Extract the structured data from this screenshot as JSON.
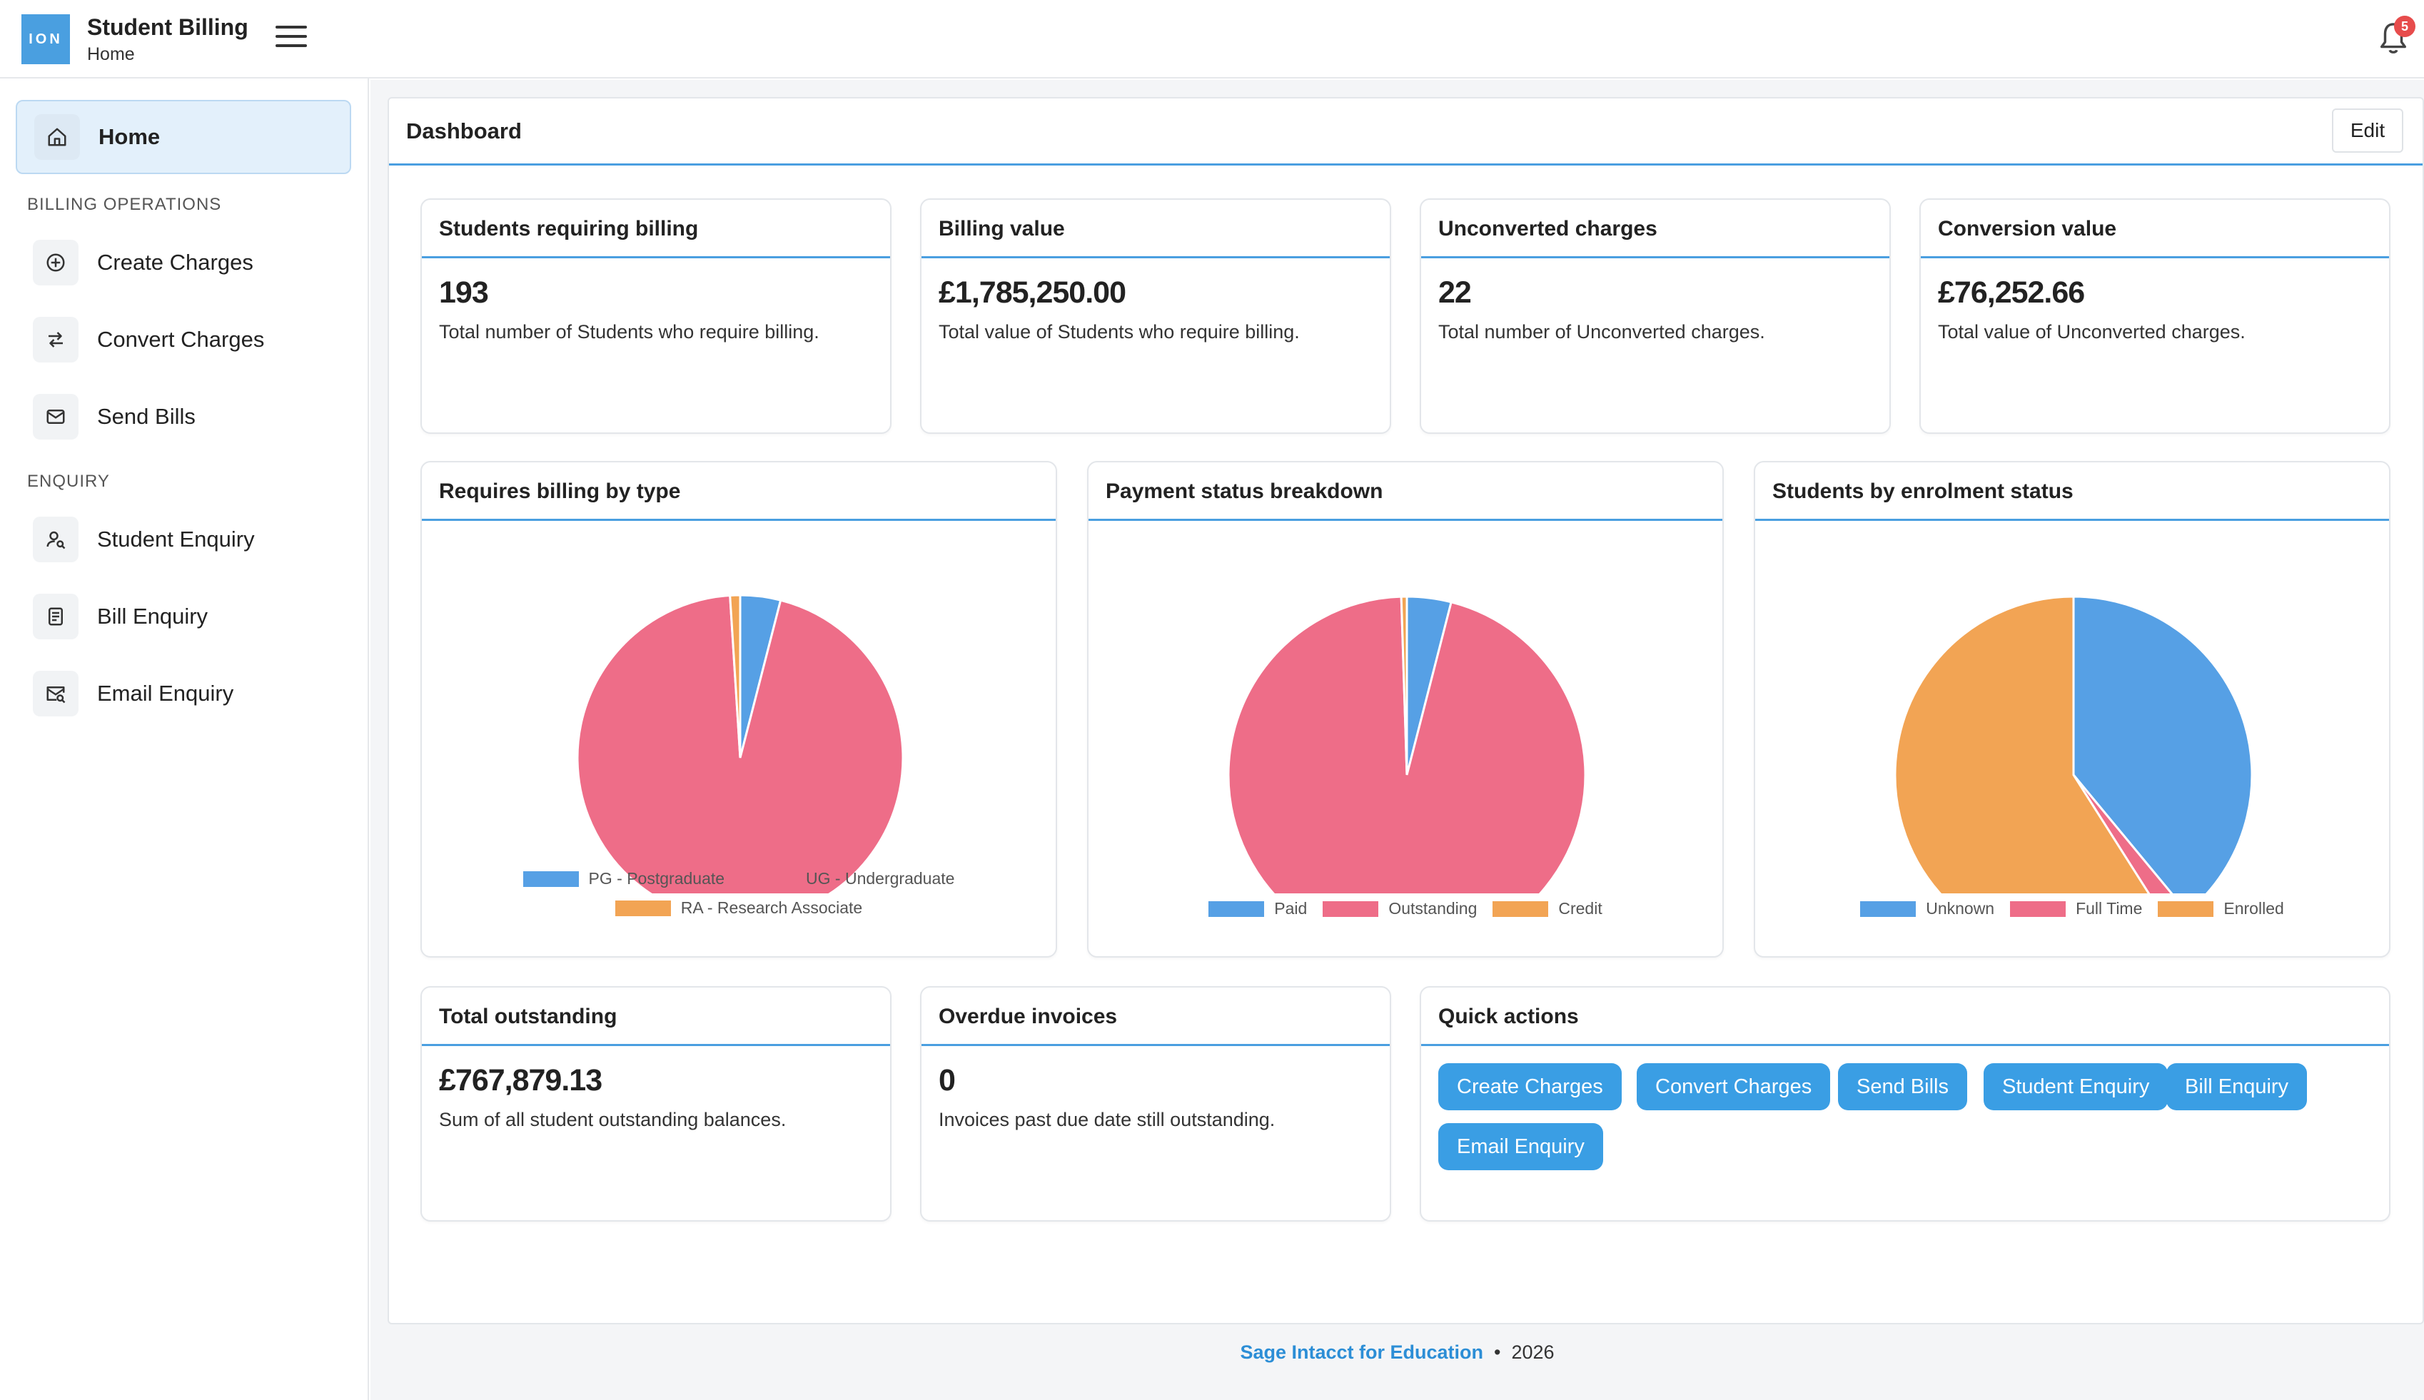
{
  "header": {
    "logo_text": "ION",
    "app_title": "Student Billing",
    "app_subtitle": "Home",
    "notification_count": "5"
  },
  "sidebar": {
    "home_label": "Home",
    "section_billing": "BILLING OPERATIONS",
    "section_enquiry": "ENQUIRY",
    "items": [
      {
        "label": "Create Charges",
        "icon": "plus-circle-icon"
      },
      {
        "label": "Convert Charges",
        "icon": "swap-arrows-icon"
      },
      {
        "label": "Send Bills",
        "icon": "envelope-icon"
      },
      {
        "label": "Student Enquiry",
        "icon": "user-search-icon"
      },
      {
        "label": "Bill Enquiry",
        "icon": "document-icon"
      },
      {
        "label": "Email Enquiry",
        "icon": "email-search-icon"
      }
    ]
  },
  "dashboard": {
    "title": "Dashboard",
    "edit_label": "Edit",
    "stats": [
      {
        "title": "Students requiring billing",
        "value": "193",
        "desc": "Total number of Students who require billing."
      },
      {
        "title": "Billing value",
        "value": "£1,785,250.00",
        "desc": "Total value of Students who require billing."
      },
      {
        "title": "Unconverted charges",
        "value": "22",
        "desc": "Total number of Unconverted charges."
      },
      {
        "title": "Conversion value",
        "value": "£76,252.66",
        "desc": "Total value of Unconverted charges."
      }
    ],
    "bottom_stats": [
      {
        "title": "Total outstanding",
        "value": "£767,879.13",
        "desc": "Sum of all student outstanding balances."
      },
      {
        "title": "Overdue invoices",
        "value": "0",
        "desc": "Invoices past due date still outstanding."
      }
    ],
    "quick_actions": {
      "title": "Quick actions",
      "buttons": [
        "Create Charges",
        "Convert Charges",
        "Send Bills",
        "Student Enquiry",
        "Bill Enquiry",
        "Email Enquiry"
      ]
    }
  },
  "chart_data": [
    {
      "type": "pie",
      "title": "Requires billing by type",
      "categories": [
        "PG - Postgraduate",
        "UG - Undergraduate",
        "RA - Research Associate"
      ],
      "values": [
        4,
        95,
        1
      ],
      "colors": [
        "#56a0e5",
        "#ee6d88",
        "#f2a454"
      ],
      "legend": "bottom"
    },
    {
      "type": "pie",
      "title": "Payment status breakdown",
      "categories": [
        "Paid",
        "Outstanding",
        "Credit"
      ],
      "values": [
        4,
        95.5,
        0.5
      ],
      "colors": [
        "#56a0e5",
        "#ee6d88",
        "#f2a454"
      ],
      "legend": "bottom"
    },
    {
      "type": "pie",
      "title": "Students by enrolment status",
      "categories": [
        "Unknown",
        "Full Time",
        "Enrolled"
      ],
      "values": [
        39,
        2,
        59
      ],
      "colors": [
        "#56a0e5",
        "#ee6d88",
        "#f2a454"
      ],
      "legend": "bottom"
    }
  ],
  "footer": {
    "brand": "Sage Intacct for Education",
    "separator": "•",
    "year": "2026"
  }
}
